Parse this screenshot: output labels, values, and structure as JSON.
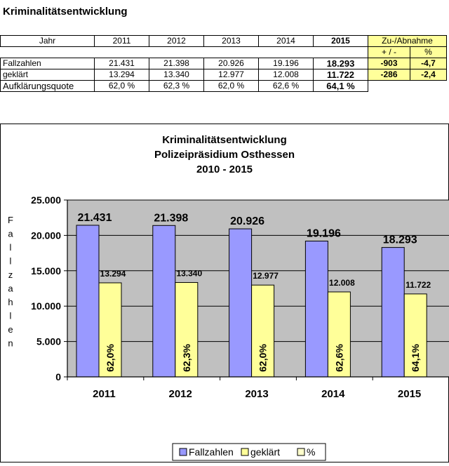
{
  "page": {
    "title": "Kriminalitätsentwicklung"
  },
  "table": {
    "header": {
      "label": "Jahr",
      "years": [
        "2011",
        "2012",
        "2013",
        "2014",
        "2015"
      ],
      "change_title": "Zu-/Abnahme",
      "change_abs": "+ / -",
      "change_pct": "%"
    },
    "rows": [
      {
        "label": "Fallzahlen",
        "values": [
          "21.431",
          "21.398",
          "20.926",
          "19.196",
          "18.293"
        ],
        "change_abs": "-903",
        "change_pct": "-4,7"
      },
      {
        "label": "geklärt",
        "values": [
          "13.294",
          "13.340",
          "12.977",
          "12.008",
          "11.722"
        ],
        "change_abs": "-286",
        "change_pct": "-2,4"
      },
      {
        "label": "Aufklärungsquote",
        "values": [
          "62,0 %",
          "62,3 %",
          "62,0 %",
          "62,6 %",
          "64,1 %"
        ]
      }
    ]
  },
  "chart_data": {
    "type": "bar",
    "title": [
      "Kriminalitätsentwicklung",
      "Polizeipräsidium Osthessen",
      "2010 - 2015"
    ],
    "ylabel": "Fallzahlen",
    "ylim": [
      0,
      25000
    ],
    "yticks": [
      0,
      5000,
      10000,
      15000,
      20000,
      25000
    ],
    "ytick_labels": [
      "0",
      "5.000",
      "10.000",
      "15.000",
      "20.000",
      "25.000"
    ],
    "categories": [
      "2011",
      "2012",
      "2013",
      "2014",
      "2015"
    ],
    "series": [
      {
        "name": "Fallzahlen",
        "values": [
          21431,
          21398,
          20926,
          19196,
          18293
        ],
        "labels": [
          "21.431",
          "21.398",
          "20.926",
          "19.196",
          "18.293"
        ],
        "color": "#9999ff"
      },
      {
        "name": "geklärt",
        "values": [
          13294,
          13340,
          12977,
          12008,
          11722
        ],
        "labels": [
          "13.294",
          "13.340",
          "12.977",
          "12.008",
          "11.722"
        ],
        "color": "#ffff99",
        "inner_labels": [
          "62,0%",
          "62,3%",
          "62,0%",
          "62,6%",
          "64,1%"
        ]
      }
    ],
    "legend": [
      "Fallzahlen",
      "geklärt",
      "%"
    ],
    "legend_colors": [
      "#9999ff",
      "#ffff99",
      "#ffffcc"
    ],
    "legend_position": "bottom",
    "plot_background": "#c0c0c0",
    "grid": true
  }
}
